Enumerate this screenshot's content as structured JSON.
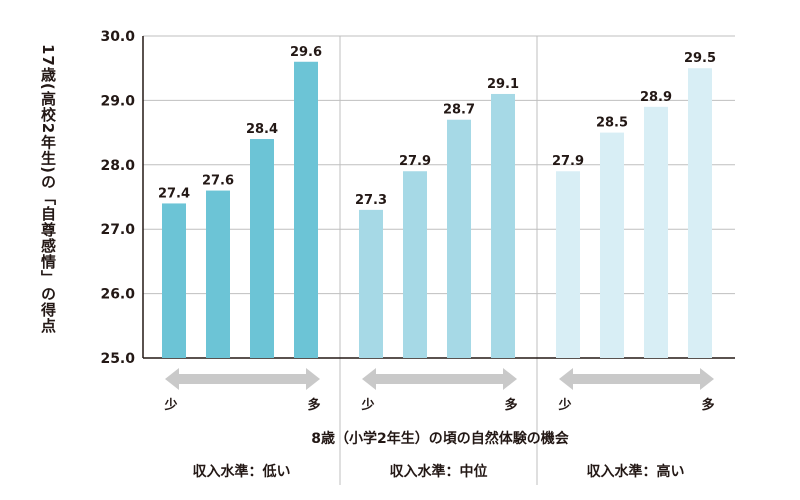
{
  "chart_data": {
    "type": "bar",
    "ylabel": "17歳(高校2年生)の「自尊感情」の得点",
    "xlabel": "8歳（小学2年生）の頃の自然体験の機会",
    "ylim": [
      25.0,
      30.0
    ],
    "yticks": [
      "25.0",
      "26.0",
      "27.0",
      "28.0",
      "29.0",
      "30.0"
    ],
    "groups": [
      {
        "name": "収入水準：低い",
        "color": "#6cc4d6",
        "values": [
          27.4,
          27.6,
          28.4,
          29.6
        ],
        "labels": [
          "27.4",
          "27.6",
          "28.4",
          "29.6"
        ]
      },
      {
        "name": "収入水準：中位",
        "color": "#a6d9e6",
        "values": [
          27.3,
          27.9,
          28.7,
          29.1
        ],
        "labels": [
          "27.3",
          "27.9",
          "28.7",
          "29.1"
        ]
      },
      {
        "name": "収入水準：高い",
        "color": "#d8eef5",
        "values": [
          27.9,
          28.5,
          28.9,
          29.5
        ],
        "labels": [
          "27.9",
          "28.5",
          "28.9",
          "29.5"
        ]
      }
    ],
    "arrow_left_label": "少",
    "arrow_right_label": "多",
    "grid": true
  }
}
